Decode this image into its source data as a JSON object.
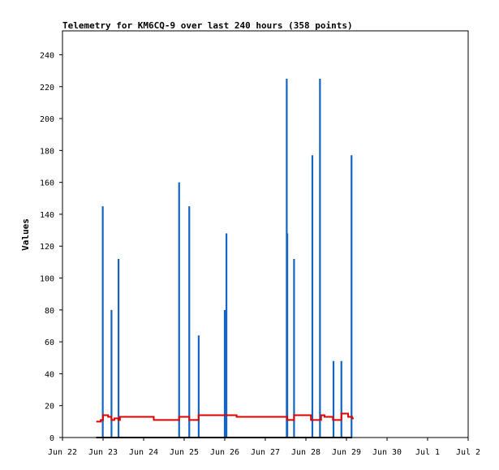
{
  "chart_data": {
    "type": "line",
    "title": "Telemetry for KM6CQ-9 over last 240 hours (358 points)",
    "ylabel": "Values",
    "xlabel": "",
    "ylim": [
      0,
      255
    ],
    "xlim": [
      "2022-06-22 00:00",
      "2022-07-02 00:00"
    ],
    "yticks": [
      0,
      20,
      40,
      60,
      80,
      100,
      120,
      140,
      160,
      180,
      200,
      220,
      240
    ],
    "xticks": [
      {
        "t": "2022-06-22 00:00",
        "label": "Jun 22"
      },
      {
        "t": "2022-06-23 00:00",
        "label": "Jun 23"
      },
      {
        "t": "2022-06-24 00:00",
        "label": "Jun 24"
      },
      {
        "t": "2022-06-25 00:00",
        "label": "Jun 25"
      },
      {
        "t": "2022-06-26 00:00",
        "label": "Jun 26"
      },
      {
        "t": "2022-06-27 00:00",
        "label": "Jun 27"
      },
      {
        "t": "2022-06-28 00:00",
        "label": "Jun 28"
      },
      {
        "t": "2022-06-29 00:00",
        "label": "Jun 29"
      },
      {
        "t": "2022-06-30 00:00",
        "label": "Jun 30"
      },
      {
        "t": "2022-07-01 00:00",
        "label": "Jul 1"
      },
      {
        "t": "2022-07-02 00:00",
        "label": "Jul 2"
      }
    ],
    "grid": false,
    "series": [
      {
        "color": "#1565c0",
        "style": "spikes",
        "points": [
          {
            "t": "2022-06-22 23:50",
            "v": 145
          },
          {
            "t": "2022-06-23 05:00",
            "v": 80
          },
          {
            "t": "2022-06-23 09:10",
            "v": 112
          },
          {
            "t": "2022-06-24 21:00",
            "v": 160
          },
          {
            "t": "2022-06-25 03:00",
            "v": 145
          },
          {
            "t": "2022-06-25 08:35",
            "v": 64
          },
          {
            "t": "2022-06-26 00:00",
            "v": 80
          },
          {
            "t": "2022-06-26 01:00",
            "v": 128
          },
          {
            "t": "2022-06-27 12:40",
            "v": 225
          },
          {
            "t": "2022-06-27 13:00",
            "v": 128
          },
          {
            "t": "2022-06-27 17:00",
            "v": 112
          },
          {
            "t": "2022-06-28 03:50",
            "v": 177
          },
          {
            "t": "2022-06-28 08:20",
            "v": 225
          },
          {
            "t": "2022-06-28 16:20",
            "v": 48
          },
          {
            "t": "2022-06-28 21:00",
            "v": 48
          },
          {
            "t": "2022-06-29 03:00",
            "v": 177
          }
        ]
      },
      {
        "color": "#dd0000",
        "style": "step",
        "points": [
          {
            "t": "2022-06-22 20:00",
            "v": 10
          },
          {
            "t": "2022-06-22 22:40",
            "v": 11
          },
          {
            "t": "2022-06-23 00:00",
            "v": 14
          },
          {
            "t": "2022-06-23 03:00",
            "v": 13
          },
          {
            "t": "2022-06-23 05:00",
            "v": 11
          },
          {
            "t": "2022-06-23 06:45",
            "v": 12
          },
          {
            "t": "2022-06-23 09:00",
            "v": 11
          },
          {
            "t": "2022-06-23 10:00",
            "v": 13
          },
          {
            "t": "2022-06-24 06:00",
            "v": 11
          },
          {
            "t": "2022-06-24 21:00",
            "v": 13
          },
          {
            "t": "2022-06-25 03:00",
            "v": 11
          },
          {
            "t": "2022-06-25 08:30",
            "v": 14
          },
          {
            "t": "2022-06-26 07:00",
            "v": 13
          },
          {
            "t": "2022-06-27 10:00",
            "v": 13
          },
          {
            "t": "2022-06-27 13:00",
            "v": 11
          },
          {
            "t": "2022-06-27 17:00",
            "v": 14
          },
          {
            "t": "2022-06-28 03:00",
            "v": 11
          },
          {
            "t": "2022-06-28 09:00",
            "v": 14
          },
          {
            "t": "2022-06-28 11:00",
            "v": 13
          },
          {
            "t": "2022-06-28 16:00",
            "v": 11
          },
          {
            "t": "2022-06-28 21:00",
            "v": 15
          },
          {
            "t": "2022-06-29 01:00",
            "v": 13
          },
          {
            "t": "2022-06-29 03:20",
            "v": 12
          }
        ]
      },
      {
        "color": "#000000",
        "style": "line",
        "points": [
          {
            "t": "2022-06-22 20:00",
            "v": 0
          },
          {
            "t": "2022-06-29 03:20",
            "v": 0
          }
        ]
      }
    ]
  }
}
